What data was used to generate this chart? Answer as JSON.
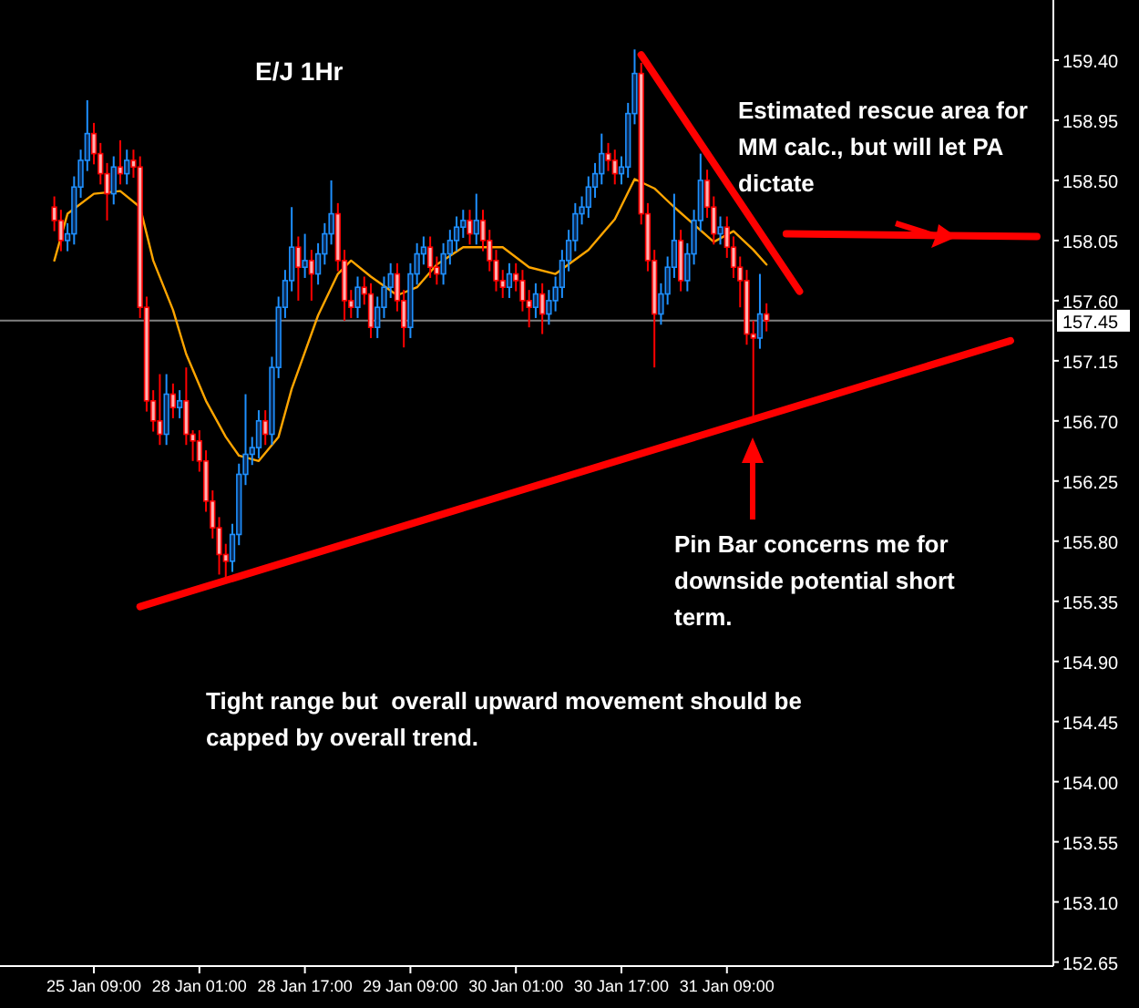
{
  "chart_data": {
    "type": "candlestick",
    "title": "E/J 1Hr",
    "categories": [
      null,
      null,
      null,
      null,
      null,
      null,
      "25 Jan 09:00",
      null,
      null,
      null,
      null,
      null,
      null,
      null,
      null,
      null,
      null,
      null,
      null,
      null,
      null,
      null,
      "28 Jan 01:00",
      null,
      null,
      null,
      null,
      null,
      null,
      null,
      null,
      null,
      null,
      null,
      null,
      null,
      null,
      null,
      "28 Jan 17:00",
      null,
      null,
      null,
      null,
      null,
      null,
      null,
      null,
      null,
      null,
      null,
      null,
      null,
      null,
      null,
      "29 Jan 09:00",
      null,
      null,
      null,
      null,
      null,
      null,
      null,
      null,
      null,
      null,
      null,
      null,
      null,
      null,
      null,
      "30 Jan 01:00",
      null,
      null,
      null,
      null,
      null,
      null,
      null,
      null,
      null,
      null,
      null,
      null,
      null,
      null,
      null,
      "30 Jan 17:00",
      null,
      null,
      null,
      null,
      null,
      null,
      null,
      null,
      null,
      null,
      null,
      null,
      null,
      null,
      null,
      "31 Jan 09:00",
      null,
      null,
      null,
      null,
      null,
      null,
      null,
      null,
      null,
      null,
      null,
      null,
      null,
      null,
      null,
      null,
      null,
      null,
      null,
      null,
      null,
      null,
      null,
      null,
      null,
      null,
      null,
      null,
      null,
      null,
      null,
      null,
      null,
      null,
      null,
      null,
      null,
      null,
      null,
      null,
      null,
      null,
      null,
      null,
      null,
      null,
      null,
      null,
      null
    ],
    "ohlc": [
      [
        158.3,
        158.38,
        158.12,
        158.2
      ],
      [
        158.2,
        158.28,
        157.97,
        158.05
      ],
      [
        158.05,
        158.18,
        157.97,
        158.1
      ],
      [
        158.1,
        158.53,
        158.02,
        158.45
      ],
      [
        158.45,
        158.73,
        158.37,
        158.65
      ],
      [
        158.65,
        159.1,
        158.57,
        158.85
      ],
      [
        158.85,
        158.93,
        158.62,
        158.7
      ],
      [
        158.7,
        158.78,
        158.47,
        158.55
      ],
      [
        158.55,
        158.63,
        158.2,
        158.4
      ],
      [
        158.4,
        158.68,
        158.32,
        158.6
      ],
      [
        158.6,
        158.8,
        158.47,
        158.55
      ],
      [
        158.55,
        158.73,
        158.47,
        158.65
      ],
      [
        158.65,
        158.73,
        158.52,
        158.6
      ],
      [
        158.6,
        158.68,
        157.47,
        157.55
      ],
      [
        157.55,
        157.63,
        156.77,
        156.85
      ],
      [
        156.85,
        156.93,
        156.62,
        156.7
      ],
      [
        156.7,
        157.05,
        156.52,
        156.6
      ],
      [
        156.6,
        157.05,
        156.52,
        156.9
      ],
      [
        156.9,
        156.98,
        156.72,
        156.8
      ],
      [
        156.8,
        156.93,
        156.72,
        156.85
      ],
      [
        156.85,
        157.1,
        156.52,
        156.6
      ],
      [
        156.6,
        156.63,
        156.4,
        156.55
      ],
      [
        156.55,
        156.63,
        156.32,
        156.4
      ],
      [
        156.4,
        156.48,
        156.02,
        156.1
      ],
      [
        156.1,
        156.18,
        155.82,
        155.9
      ],
      [
        155.9,
        155.98,
        155.55,
        155.7
      ],
      [
        155.7,
        155.78,
        155.5,
        155.65
      ],
      [
        155.65,
        155.93,
        155.57,
        155.85
      ],
      [
        155.85,
        156.38,
        155.77,
        156.3
      ],
      [
        156.3,
        156.9,
        156.22,
        156.45
      ],
      [
        156.45,
        156.58,
        156.37,
        156.5
      ],
      [
        156.5,
        156.78,
        156.42,
        156.7
      ],
      [
        156.7,
        156.78,
        156.52,
        156.6
      ],
      [
        156.6,
        157.18,
        156.52,
        157.1
      ],
      [
        157.1,
        157.63,
        157.02,
        157.55
      ],
      [
        157.55,
        157.83,
        157.47,
        157.75
      ],
      [
        157.75,
        158.3,
        157.67,
        158.0
      ],
      [
        158.0,
        158.08,
        157.6,
        157.85
      ],
      [
        157.85,
        158.1,
        157.77,
        157.9
      ],
      [
        157.9,
        157.98,
        157.6,
        157.8
      ],
      [
        157.8,
        158.03,
        157.72,
        157.95
      ],
      [
        157.95,
        158.18,
        157.87,
        158.1
      ],
      [
        158.1,
        158.5,
        158.02,
        158.25
      ],
      [
        158.25,
        158.33,
        157.82,
        157.9
      ],
      [
        157.9,
        157.98,
        157.45,
        157.6
      ],
      [
        157.6,
        157.68,
        157.47,
        157.55
      ],
      [
        157.55,
        157.78,
        157.47,
        157.7
      ],
      [
        157.7,
        157.78,
        157.57,
        157.65
      ],
      [
        157.65,
        157.73,
        157.32,
        157.4
      ],
      [
        157.4,
        157.63,
        157.32,
        157.55
      ],
      [
        157.55,
        157.78,
        157.47,
        157.7
      ],
      [
        157.7,
        157.88,
        157.62,
        157.8
      ],
      [
        157.8,
        157.88,
        157.52,
        157.6
      ],
      [
        157.6,
        157.68,
        157.25,
        157.4
      ],
      [
        157.4,
        157.88,
        157.32,
        157.8
      ],
      [
        157.8,
        158.03,
        157.72,
        157.95
      ],
      [
        157.95,
        158.08,
        157.87,
        158.0
      ],
      [
        158.0,
        158.08,
        157.77,
        157.85
      ],
      [
        157.85,
        157.93,
        157.72,
        157.8
      ],
      [
        157.8,
        158.03,
        157.72,
        157.95
      ],
      [
        157.95,
        158.13,
        157.87,
        158.05
      ],
      [
        158.05,
        158.23,
        157.97,
        158.15
      ],
      [
        158.15,
        158.28,
        158.07,
        158.2
      ],
      [
        158.2,
        158.28,
        158.02,
        158.1
      ],
      [
        158.1,
        158.4,
        158.02,
        158.2
      ],
      [
        158.2,
        158.28,
        157.97,
        158.05
      ],
      [
        158.05,
        158.13,
        157.82,
        157.9
      ],
      [
        157.9,
        157.98,
        157.67,
        157.75
      ],
      [
        157.75,
        157.83,
        157.62,
        157.7
      ],
      [
        157.7,
        157.88,
        157.62,
        157.8
      ],
      [
        157.8,
        157.88,
        157.67,
        157.75
      ],
      [
        157.75,
        157.83,
        157.52,
        157.6
      ],
      [
        157.6,
        157.68,
        157.4,
        157.55
      ],
      [
        157.55,
        157.73,
        157.47,
        157.65
      ],
      [
        157.65,
        157.73,
        157.35,
        157.5
      ],
      [
        157.5,
        157.68,
        157.42,
        157.6
      ],
      [
        157.6,
        157.78,
        157.52,
        157.7
      ],
      [
        157.7,
        157.98,
        157.62,
        157.9
      ],
      [
        157.9,
        158.13,
        157.82,
        158.05
      ],
      [
        158.05,
        158.33,
        157.97,
        158.25
      ],
      [
        158.25,
        158.38,
        158.17,
        158.3
      ],
      [
        158.3,
        158.53,
        158.22,
        158.45
      ],
      [
        158.45,
        158.63,
        158.37,
        158.55
      ],
      [
        158.55,
        158.85,
        158.47,
        158.7
      ],
      [
        158.7,
        158.78,
        158.57,
        158.65
      ],
      [
        158.65,
        158.73,
        158.47,
        158.55
      ],
      [
        158.55,
        158.68,
        158.47,
        158.6
      ],
      [
        158.6,
        159.08,
        158.52,
        159.0
      ],
      [
        159.0,
        159.48,
        158.92,
        159.3
      ],
      [
        159.3,
        159.38,
        158.17,
        158.25
      ],
      [
        158.25,
        158.33,
        157.82,
        157.9
      ],
      [
        157.9,
        157.98,
        157.1,
        157.5
      ],
      [
        157.5,
        157.73,
        157.42,
        157.65
      ],
      [
        157.65,
        157.93,
        157.57,
        157.85
      ],
      [
        157.85,
        158.4,
        157.77,
        158.05
      ],
      [
        158.05,
        158.13,
        157.67,
        157.75
      ],
      [
        157.75,
        158.03,
        157.67,
        157.95
      ],
      [
        157.95,
        158.28,
        157.87,
        158.2
      ],
      [
        158.2,
        158.7,
        158.12,
        158.5
      ],
      [
        158.5,
        158.58,
        158.22,
        158.3
      ],
      [
        158.3,
        158.38,
        158.02,
        158.1
      ],
      [
        158.1,
        158.23,
        158.02,
        158.15
      ],
      [
        158.15,
        158.23,
        157.92,
        158.0
      ],
      [
        158.0,
        158.08,
        157.77,
        157.85
      ],
      [
        157.85,
        157.93,
        157.55,
        157.75
      ],
      [
        157.75,
        157.83,
        157.27,
        157.35
      ],
      [
        157.35,
        157.45,
        156.7,
        157.32
      ],
      [
        157.32,
        157.8,
        157.24,
        157.5
      ],
      [
        157.5,
        157.58,
        157.37,
        157.45
      ],
      null,
      null,
      null,
      null,
      null,
      null,
      null,
      null,
      null,
      null,
      null,
      null,
      null,
      null,
      null,
      null,
      null,
      null,
      null,
      null,
      null,
      null,
      null,
      null,
      null,
      null,
      null,
      null,
      null,
      null,
      null,
      null,
      null,
      null,
      null,
      null,
      null,
      null,
      null,
      null,
      null,
      null,
      null
    ],
    "series": [
      {
        "type": "line",
        "color": "#ffa500",
        "values": [
          157.9,
          null,
          158.25,
          null,
          null,
          null,
          158.4,
          null,
          null,
          null,
          158.42,
          null,
          null,
          158.3,
          null,
          157.9,
          null,
          null,
          157.53,
          null,
          157.2,
          null,
          null,
          156.85,
          null,
          null,
          156.58,
          null,
          156.44,
          null,
          null,
          156.4,
          null,
          null,
          156.58,
          null,
          156.94,
          null,
          null,
          null,
          157.49,
          null,
          null,
          157.8,
          null,
          157.9,
          null,
          null,
          157.78,
          null,
          null,
          null,
          157.64,
          null,
          null,
          157.7,
          null,
          null,
          157.87,
          null,
          null,
          null,
          158.0,
          null,
          null,
          null,
          null,
          null,
          158.0,
          null,
          null,
          null,
          157.85,
          null,
          null,
          null,
          157.8,
          null,
          null,
          null,
          null,
          157.98,
          null,
          null,
          null,
          158.21,
          null,
          null,
          158.51,
          null,
          null,
          158.44,
          null,
          null,
          158.3,
          null,
          null,
          158.17,
          null,
          null,
          158.04,
          null,
          null,
          158.12,
          null,
          null,
          157.98,
          null,
          157.87,
          null,
          null,
          null,
          null,
          null,
          null,
          null,
          null,
          null,
          null,
          null,
          null,
          null,
          null,
          null,
          null,
          null,
          null,
          null,
          null,
          null,
          null,
          null,
          null,
          null,
          null,
          null,
          null,
          null,
          null,
          null,
          null,
          null,
          null,
          null,
          null,
          null,
          null,
          null,
          null,
          null,
          null,
          null
        ]
      },
      {
        "type": "line",
        "color": "#ff0000",
        "values": [
          null,
          null,
          null,
          null,
          null,
          null,
          null,
          null,
          null,
          null,
          null,
          null,
          null,
          155.31,
          null,
          null,
          null,
          null,
          null,
          null,
          null,
          null,
          null,
          null,
          null,
          null,
          null,
          null,
          null,
          null,
          null,
          null,
          null,
          null,
          null,
          null,
          null,
          null,
          null,
          null,
          null,
          null,
          null,
          null,
          null,
          null,
          null,
          null,
          null,
          null,
          null,
          null,
          null,
          null,
          null,
          null,
          null,
          null,
          null,
          null,
          null,
          null,
          null,
          null,
          null,
          null,
          null,
          null,
          null,
          null,
          null,
          null,
          null,
          null,
          null,
          null,
          null,
          null,
          null,
          null,
          null,
          null,
          null,
          null,
          null,
          null,
          null,
          null,
          null,
          null,
          null,
          null,
          null,
          null,
          null,
          null,
          null,
          null,
          null,
          null,
          null,
          null,
          null,
          null,
          null,
          null,
          null,
          null,
          null,
          null,
          null,
          null,
          null,
          null,
          null,
          null,
          null,
          null,
          null,
          null,
          null,
          null,
          null,
          null,
          null,
          null,
          null,
          null,
          null,
          null,
          null,
          null,
          null,
          null,
          null,
          null,
          null,
          null,
          null,
          null,
          null,
          null,
          null,
          null,
          null,
          157.3,
          null,
          null,
          null,
          null,
          null,
          null
        ]
      },
      {
        "type": "line",
        "color": "#ff0000",
        "values": [
          null,
          null,
          null,
          null,
          null,
          null,
          null,
          null,
          null,
          null,
          null,
          null,
          null,
          null,
          null,
          null,
          null,
          null,
          null,
          null,
          null,
          null,
          null,
          null,
          null,
          null,
          null,
          null,
          null,
          null,
          null,
          null,
          null,
          null,
          null,
          null,
          null,
          null,
          null,
          null,
          null,
          null,
          null,
          null,
          null,
          null,
          null,
          null,
          null,
          null,
          null,
          null,
          null,
          null,
          null,
          null,
          null,
          null,
          null,
          null,
          null,
          null,
          null,
          null,
          null,
          null,
          null,
          null,
          null,
          null,
          null,
          null,
          null,
          null,
          null,
          null,
          null,
          null,
          null,
          null,
          null,
          null,
          null,
          null,
          null,
          null,
          null,
          null,
          null,
          159.44,
          null,
          null,
          null,
          null,
          null,
          null,
          null,
          null,
          null,
          null,
          null,
          null,
          null,
          null,
          null,
          null,
          null,
          null,
          null,
          null,
          null,
          null,
          null,
          157.67,
          null,
          null,
          null,
          null,
          null,
          null,
          null,
          null,
          null,
          null,
          null,
          null,
          null,
          null,
          null,
          null,
          null,
          null,
          null,
          null,
          null,
          null,
          null,
          null,
          null,
          null,
          null,
          null,
          null,
          null,
          null,
          null,
          null,
          null,
          null,
          null,
          null,
          null
        ]
      },
      {
        "type": "line",
        "color": "#ff0000",
        "values": [
          null,
          null,
          null,
          null,
          null,
          null,
          null,
          null,
          null,
          null,
          null,
          null,
          null,
          null,
          null,
          null,
          null,
          null,
          null,
          null,
          null,
          null,
          null,
          null,
          null,
          null,
          null,
          null,
          null,
          null,
          null,
          null,
          null,
          null,
          null,
          null,
          null,
          null,
          null,
          null,
          null,
          null,
          null,
          null,
          null,
          null,
          null,
          null,
          null,
          null,
          null,
          null,
          null,
          null,
          null,
          null,
          null,
          null,
          null,
          null,
          null,
          null,
          null,
          null,
          null,
          null,
          null,
          null,
          null,
          null,
          null,
          null,
          null,
          null,
          null,
          null,
          null,
          null,
          null,
          null,
          null,
          null,
          null,
          null,
          null,
          null,
          null,
          null,
          null,
          null,
          null,
          null,
          null,
          null,
          null,
          null,
          null,
          null,
          null,
          null,
          null,
          null,
          null,
          null,
          null,
          null,
          null,
          null,
          null,
          null,
          null,
          158.1,
          null,
          null,
          null,
          null,
          null,
          null,
          null,
          null,
          null,
          null,
          null,
          null,
          null,
          null,
          null,
          null,
          null,
          null,
          null,
          null,
          null,
          null,
          null,
          null,
          null,
          null,
          null,
          null,
          null,
          null,
          null,
          null,
          null,
          null,
          null,
          null,
          null,
          158.08,
          null,
          null
        ]
      }
    ],
    "ylim": [
      152.62,
      159.85
    ],
    "yticks": [
      {
        "value": 159.4,
        "label": "159.40"
      },
      {
        "value": 158.95,
        "label": "158.95"
      },
      {
        "value": 158.5,
        "label": "158.50"
      },
      {
        "value": 158.05,
        "label": "158.05"
      },
      {
        "value": 157.6,
        "label": "157.60"
      },
      {
        "value": 157.15,
        "label": "157.15"
      },
      {
        "value": 156.7,
        "label": "156.70"
      },
      {
        "value": 156.25,
        "label": "156.25"
      },
      {
        "value": 155.8,
        "label": "155.80"
      },
      {
        "value": 155.35,
        "label": "155.35"
      },
      {
        "value": 154.9,
        "label": "154.90"
      },
      {
        "value": 154.45,
        "label": "154.45"
      },
      {
        "value": 154,
        "label": "154.00"
      },
      {
        "value": 153.55,
        "label": "153.55"
      },
      {
        "value": 153.1,
        "label": "153.10"
      },
      {
        "value": 152.65,
        "label": "152.65"
      }
    ],
    "ref_lines": [
      {
        "axis": "y",
        "value": 157.45,
        "label": "157.45",
        "color": "#808080"
      }
    ],
    "annotations": [
      "Estimated rescue area for MM calc., but will let PA dictate",
      "Pin Bar concerns me for downside potential short term.",
      "Tight range but  overall upward movement should be capped by overall trend."
    ],
    "grid": false
  }
}
